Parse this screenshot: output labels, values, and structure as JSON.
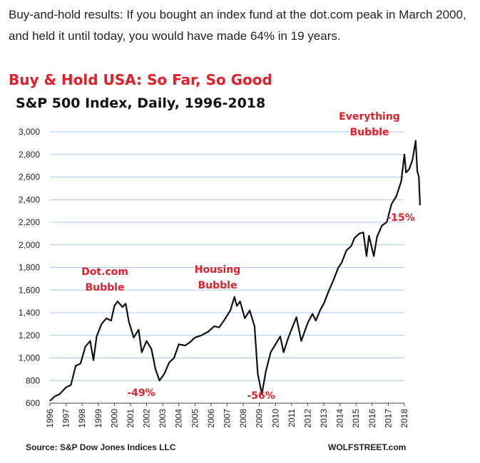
{
  "caption": "Buy-and-hold results: If you bought an index fund at the dot.com peak in March 2000, and held it until today, you would have made 64% in 19 years.",
  "chart_data": {
    "type": "line",
    "title": "Buy & Hold USA: So Far, So Good",
    "subtitle": "S&P 500 Index, Daily, 1996-2018",
    "xlabel": "",
    "ylabel": "",
    "ylim": [
      600,
      3000
    ],
    "xlim": [
      1996,
      2018
    ],
    "y_ticks": [
      "600",
      "800",
      "1,000",
      "1,200",
      "1,400",
      "1,600",
      "1,800",
      "2,000",
      "2,200",
      "2,400",
      "2,600",
      "2,800",
      "3,000"
    ],
    "x_ticks": [
      "1996",
      "1997",
      "1998",
      "1999",
      "2000",
      "2001",
      "2002",
      "2003",
      "2004",
      "2005",
      "2006",
      "2007",
      "2008",
      "2009",
      "2010",
      "2011",
      "2012",
      "2013",
      "2014",
      "2015",
      "2016",
      "2017",
      "2018"
    ],
    "grid": true,
    "series": [
      {
        "color": "#111111",
        "x": [
          1996.0,
          1996.3,
          1996.6,
          1997.0,
          1997.3,
          1997.6,
          1997.9,
          1998.2,
          1998.5,
          1998.7,
          1998.9,
          1999.2,
          1999.5,
          1999.8,
          2000.0,
          2000.2,
          2000.5,
          2000.7,
          2000.9,
          2001.2,
          2001.5,
          2001.7,
          2002.0,
          2002.3,
          2002.55,
          2002.8,
          2003.1,
          2003.4,
          2003.7,
          2004.0,
          2004.4,
          2004.7,
          2005.0,
          2005.4,
          2005.8,
          2006.2,
          2006.5,
          2006.8,
          2007.2,
          2007.45,
          2007.6,
          2007.8,
          2008.1,
          2008.4,
          2008.7,
          2008.9,
          2009.15,
          2009.4,
          2009.7,
          2010.0,
          2010.3,
          2010.5,
          2010.8,
          2011.1,
          2011.3,
          2011.6,
          2011.8,
          2012.0,
          2012.3,
          2012.5,
          2012.8,
          2013.0,
          2013.3,
          2013.6,
          2013.9,
          2014.1,
          2014.4,
          2014.7,
          2014.9,
          2015.2,
          2015.45,
          2015.65,
          2015.8,
          2016.1,
          2016.3,
          2016.6,
          2016.9,
          2017.2,
          2017.5,
          2017.8,
          2018.0,
          2018.1,
          2018.3,
          2018.5,
          2018.7,
          2018.8,
          2018.9,
          2018.97
        ],
        "values": [
          620,
          660,
          680,
          740,
          760,
          930,
          950,
          1100,
          1150,
          980,
          1190,
          1300,
          1350,
          1330,
          1460,
          1500,
          1450,
          1480,
          1320,
          1180,
          1250,
          1050,
          1150,
          1080,
          900,
          800,
          860,
          960,
          1000,
          1120,
          1110,
          1140,
          1180,
          1200,
          1230,
          1280,
          1270,
          1330,
          1420,
          1540,
          1460,
          1500,
          1350,
          1420,
          1280,
          860,
          680,
          880,
          1050,
          1120,
          1190,
          1050,
          1180,
          1290,
          1360,
          1150,
          1230,
          1310,
          1390,
          1330,
          1430,
          1480,
          1590,
          1690,
          1800,
          1840,
          1950,
          1990,
          2060,
          2100,
          2110,
          1900,
          2080,
          1900,
          2070,
          2170,
          2200,
          2360,
          2430,
          2560,
          2800,
          2640,
          2670,
          2750,
          2920,
          2650,
          2600,
          2350
        ]
      }
    ],
    "annotations": [
      {
        "lines": [
          "Dot.com",
          "Bubble"
        ]
      },
      {
        "lines": [
          "Housing",
          "Bubble"
        ]
      },
      {
        "lines": [
          "Everything",
          "Bubble"
        ]
      },
      {
        "lines": [
          "-49%"
        ]
      },
      {
        "lines": [
          "-56%"
        ]
      },
      {
        "lines": [
          "-15%"
        ]
      }
    ]
  },
  "footer": {
    "source": "Source: S&P Dow Jones Indices LLC",
    "brand": "WOLFSTREET.com"
  }
}
